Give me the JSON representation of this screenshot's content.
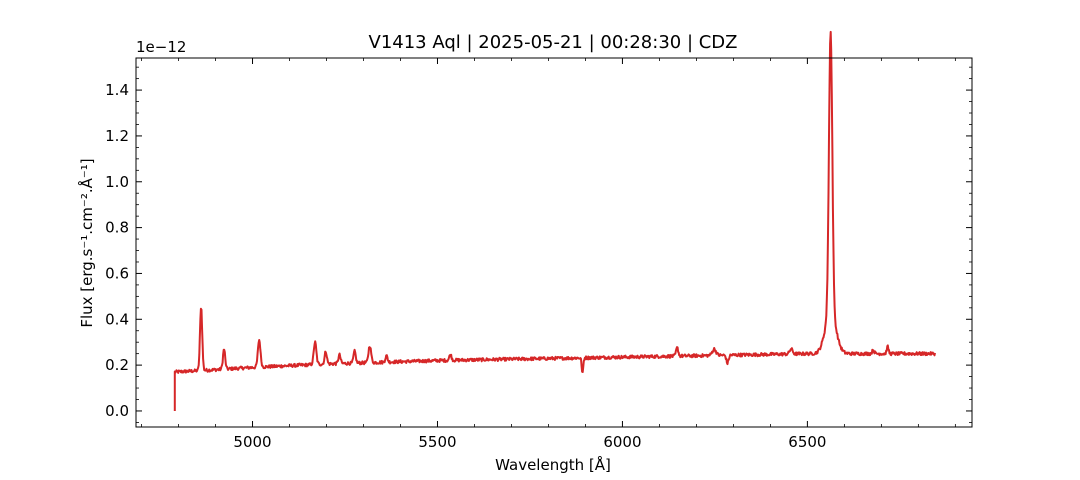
{
  "chart_data": {
    "type": "line",
    "title": "V1413 Aql | 2025-05-21 | 00:28:30 | CDZ",
    "xlabel": "Wavelength [Å]",
    "ylabel": "Flux [erg.s⁻¹.cm⁻².Å⁻¹]",
    "y_offset_label": "1e−12",
    "y_scale_factor": 1e-12,
    "xlim": [
      4685,
      6945
    ],
    "ylim": [
      -0.07,
      1.54
    ],
    "x_ticks": [
      5000,
      5500,
      6000,
      6500
    ],
    "x_tick_labels": [
      "5000",
      "5500",
      "6000",
      "6500"
    ],
    "y_ticks": [
      0.0,
      0.2,
      0.4,
      0.6,
      0.8,
      1.0,
      1.2,
      1.4
    ],
    "y_tick_labels": [
      "0.0",
      "0.2",
      "0.4",
      "0.6",
      "0.8",
      "1.0",
      "1.2",
      "1.4"
    ],
    "grid": false,
    "line_color": "#d62728",
    "series": [
      {
        "x_start": 4790,
        "x_end": 6845,
        "continuum": [
          [
            4790,
            0.17
          ],
          [
            4900,
            0.18
          ],
          [
            5000,
            0.19
          ],
          [
            5200,
            0.205
          ],
          [
            5500,
            0.22
          ],
          [
            6000,
            0.235
          ],
          [
            6500,
            0.25
          ],
          [
            6845,
            0.25
          ]
        ],
        "emission_lines": [
          {
            "center": 4861,
            "peak": 0.455,
            "width": 3
          },
          {
            "center": 4923,
            "peak": 0.27,
            "width": 3
          },
          {
            "center": 5018,
            "peak": 0.31,
            "width": 3.5
          },
          {
            "center": 5169,
            "peak": 0.3,
            "width": 3.5
          },
          {
            "center": 5198,
            "peak": 0.26,
            "width": 3
          },
          {
            "center": 5235,
            "peak": 0.245,
            "width": 3
          },
          {
            "center": 5276,
            "peak": 0.26,
            "width": 3
          },
          {
            "center": 5317,
            "peak": 0.285,
            "width": 3.5
          },
          {
            "center": 5362,
            "peak": 0.24,
            "width": 3
          },
          {
            "center": 5535,
            "peak": 0.245,
            "width": 3
          },
          {
            "center": 6148,
            "peak": 0.275,
            "width": 3
          },
          {
            "center": 6248,
            "peak": 0.27,
            "width": 5
          },
          {
            "center": 6456,
            "peak": 0.27,
            "width": 4
          },
          {
            "center": 6562.8,
            "peak": 1.48,
            "width": 4.5
          },
          {
            "center": 6678,
            "peak": 0.265,
            "width": 3
          },
          {
            "center": 6717,
            "peak": 0.28,
            "width": 2.5
          }
        ],
        "absorption_lines": [
          {
            "center": 5892,
            "depth": 0.07,
            "width": 2
          },
          {
            "center": 6284,
            "depth": 0.035,
            "width": 3
          }
        ]
      }
    ]
  }
}
